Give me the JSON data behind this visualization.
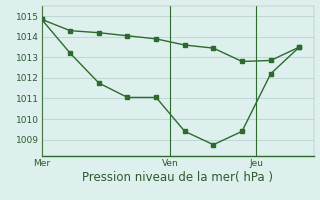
{
  "line1_x": [
    0,
    1,
    2,
    3,
    4,
    5,
    6,
    7,
    8,
    9
  ],
  "line1_y": [
    1014.85,
    1014.3,
    1014.2,
    1014.05,
    1013.9,
    1013.6,
    1013.45,
    1012.8,
    1012.85,
    1013.5
  ],
  "line2_x": [
    0,
    1,
    2,
    3,
    4,
    5,
    6,
    7,
    8,
    9
  ],
  "line2_y": [
    1014.85,
    1013.2,
    1011.75,
    1011.05,
    1011.05,
    1009.4,
    1008.75,
    1009.4,
    1012.2,
    1013.5
  ],
  "xtick_positions": [
    0,
    4.5,
    7.5
  ],
  "xtick_labels": [
    "Mer",
    "Ven",
    "Jeu"
  ],
  "vline_positions": [
    0,
    4.5,
    7.5
  ],
  "ytick_positions": [
    1009,
    1010,
    1011,
    1012,
    1013,
    1014,
    1015
  ],
  "ytick_labels": [
    "1009",
    "1010",
    "1011",
    "1012",
    "1013",
    "1014",
    "1015"
  ],
  "ylim": [
    1008.2,
    1015.5
  ],
  "xlim": [
    0,
    9.5
  ],
  "xlabel": "Pression niveau de la mer( hPa )",
  "line_color": "#2d6a2d",
  "marker": "s",
  "markersize": 2.5,
  "linewidth": 1.0,
  "bg_color": "#ddf0ee",
  "grid_color": "#c0d8d4",
  "xlabel_fontsize": 8.5,
  "tick_fontsize": 6.5
}
